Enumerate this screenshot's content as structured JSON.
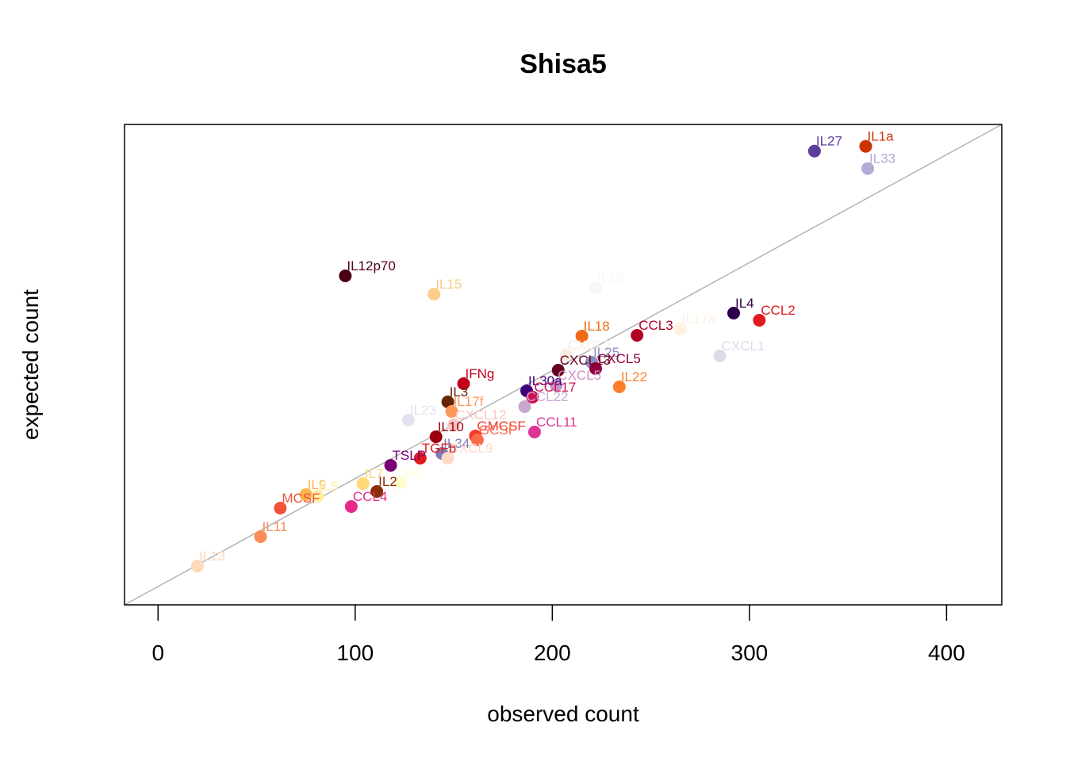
{
  "chart_data": {
    "type": "scatter",
    "title": "Shisa5",
    "xlabel": "observed count",
    "ylabel": "expected count",
    "xlim": [
      -17,
      428
    ],
    "ylim": [
      0,
      1
    ],
    "x_ticks": [
      0,
      100,
      200,
      300,
      400
    ],
    "y_ticks_shown": false,
    "reference_line": "y = x",
    "reference_line_color": "#b3b3b3",
    "grid": false,
    "legend": "none",
    "points": [
      {
        "label": "IL1a",
        "x": 359,
        "y": 0.9545,
        "color": "#cc3300"
      },
      {
        "label": "IL27",
        "x": 333,
        "y": 0.9446,
        "color": "#5e3c99"
      },
      {
        "label": "IL33",
        "x": 360,
        "y": 0.9083,
        "color": "#b2abd2"
      },
      {
        "label": "IL12p70",
        "x": 95,
        "y": 0.6848,
        "color": "#4d0013"
      },
      {
        "label": "IL15",
        "x": 140,
        "y": 0.6469,
        "color": "#fdcc8a"
      },
      {
        "label": "IL16",
        "x": 222,
        "y": 0.6601,
        "color": "#f7f7f7"
      },
      {
        "label": "IL4",
        "x": 292,
        "y": 0.6073,
        "color": "#2d004b"
      },
      {
        "label": "CCL2",
        "x": 305,
        "y": 0.5924,
        "color": "#e31a1c"
      },
      {
        "label": "IL17a",
        "x": 265,
        "y": 0.5743,
        "color": "#fff0e0"
      },
      {
        "label": "IL18",
        "x": 215,
        "y": 0.5594,
        "color": "#f16913"
      },
      {
        "label": "CCL3",
        "x": 243,
        "y": 0.5611,
        "color": "#b10026"
      },
      {
        "label": "CXCL1",
        "x": 285,
        "y": 0.5182,
        "color": "#e0d8ec"
      },
      {
        "label": "CXCL2",
        "x": 207,
        "y": 0.5198,
        "color": "#f7ece0"
      },
      {
        "label": "IL25",
        "x": 220,
        "y": 0.505,
        "color": "#8c8cc2"
      },
      {
        "label": "CXCL13",
        "x": 203,
        "y": 0.4884,
        "color": "#67001f"
      },
      {
        "label": "CXCL5",
        "x": 222,
        "y": 0.4917,
        "color": "#91003f"
      },
      {
        "label": "CXCL5",
        "x": 202,
        "y": 0.4571,
        "color": "#c994c7"
      },
      {
        "label": "IFNg",
        "x": 155,
        "y": 0.4604,
        "color": "#c4001b"
      },
      {
        "label": "IL22",
        "x": 234,
        "y": 0.4538,
        "color": "#fd7f2e"
      },
      {
        "label": "IL30a",
        "x": 187,
        "y": 0.4455,
        "color": "#3f007d"
      },
      {
        "label": "CCL17",
        "x": 190,
        "y": 0.4323,
        "color": "#ce1256"
      },
      {
        "label": "CCL22",
        "x": 186,
        "y": 0.4125,
        "color": "#c9a7d0"
      },
      {
        "label": "IL3",
        "x": 147,
        "y": 0.4224,
        "color": "#662506"
      },
      {
        "label": "IL17f",
        "x": 149,
        "y": 0.4026,
        "color": "#fd9a5a"
      },
      {
        "label": "IL23",
        "x": 127,
        "y": 0.3845,
        "color": "#e3e3f0"
      },
      {
        "label": "CXCL12",
        "x": 150,
        "y": 0.3746,
        "color": "#fcc5c0"
      },
      {
        "label": "IL10",
        "x": 141,
        "y": 0.3499,
        "color": "#99000d"
      },
      {
        "label": "GMCSF",
        "x": 161,
        "y": 0.3515,
        "color": "#ef3b2c"
      },
      {
        "label": "CCL11",
        "x": 191,
        "y": 0.3597,
        "color": "#dd3497"
      },
      {
        "label": "GCSF",
        "x": 162,
        "y": 0.3432,
        "color": "#fb6a4a"
      },
      {
        "label": "IL34",
        "x": 144,
        "y": 0.3152,
        "color": "#807dba"
      },
      {
        "label": "CXCL9",
        "x": 147,
        "y": 0.3053,
        "color": "#fddbc7"
      },
      {
        "label": "TGFb",
        "x": 133,
        "y": 0.3053,
        "color": "#e31a1c"
      },
      {
        "label": "TSLP",
        "x": 118,
        "y": 0.2904,
        "color": "#7a0177"
      },
      {
        "label": "IL7",
        "x": 104,
        "y": 0.2525,
        "color": "#fed976"
      },
      {
        "label": "IL6",
        "x": 123,
        "y": 0.2541,
        "color": "#ffffcc"
      },
      {
        "label": "IL2",
        "x": 111,
        "y": 0.236,
        "color": "#8c2d04"
      },
      {
        "label": "IL9",
        "x": 75,
        "y": 0.2294,
        "color": "#feb24c"
      },
      {
        "label": "IL5",
        "x": 81,
        "y": 0.2261,
        "color": "#ffeda0"
      },
      {
        "label": "MCSF",
        "x": 62,
        "y": 0.2013,
        "color": "#f0513a"
      },
      {
        "label": "CCL4",
        "x": 98,
        "y": 0.2046,
        "color": "#e7298a"
      },
      {
        "label": "IL11",
        "x": 52,
        "y": 0.1419,
        "color": "#fc8d59"
      },
      {
        "label": "IL13",
        "x": 20,
        "y": 0.0808,
        "color": "#fdd9b9"
      }
    ]
  }
}
